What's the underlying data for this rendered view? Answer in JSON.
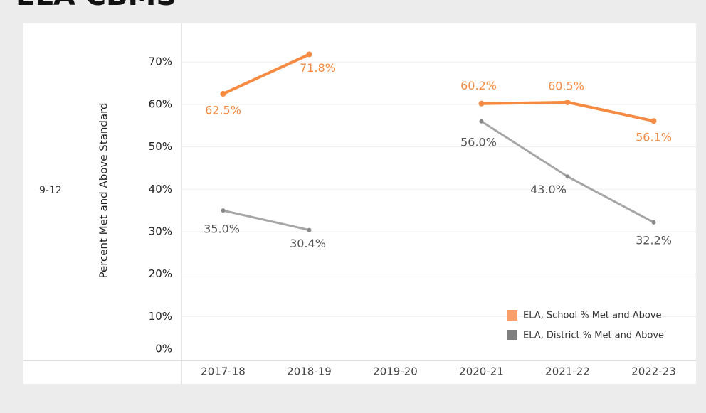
{
  "chart_data": {
    "type": "line",
    "title": "ELA CBMS",
    "row_label": "9-12",
    "y_label": "Percent Met and Above Standard",
    "categories": [
      "2017-18",
      "2018-19",
      "2019-20",
      "2020-21",
      "2021-22",
      "2022-23"
    ],
    "series": [
      {
        "name": "ELA, School % Met and Above",
        "color": "#f58b42",
        "legend_color": "#f9a06a",
        "values": [
          62.5,
          71.8,
          null,
          60.2,
          60.5,
          56.1
        ],
        "value_labels": [
          "62.5%",
          "71.8%",
          null,
          "60.2%",
          "60.5%",
          "56.1%"
        ]
      },
      {
        "name": "ELA, District % Met and Above",
        "color": "#a6a6a6",
        "legend_color": "#7f7f7f",
        "values": [
          35.0,
          30.4,
          null,
          56.0,
          43.0,
          32.2
        ],
        "value_labels": [
          "35.0%",
          "30.4%",
          null,
          "56.0%",
          "43.0%",
          "32.2%"
        ]
      }
    ],
    "ylim": [
      0,
      74.9
    ],
    "yticks": [
      {
        "value": 0,
        "label": "0%"
      },
      {
        "value": 10,
        "label": "10%"
      },
      {
        "value": 20,
        "label": "20%"
      },
      {
        "value": 30,
        "label": "30%"
      },
      {
        "value": 40,
        "label": "40%"
      },
      {
        "value": 50,
        "label": "50%"
      },
      {
        "value": 60,
        "label": "60%"
      },
      {
        "value": 70,
        "label": "70%"
      }
    ],
    "grid": true,
    "legend": "lower right"
  }
}
